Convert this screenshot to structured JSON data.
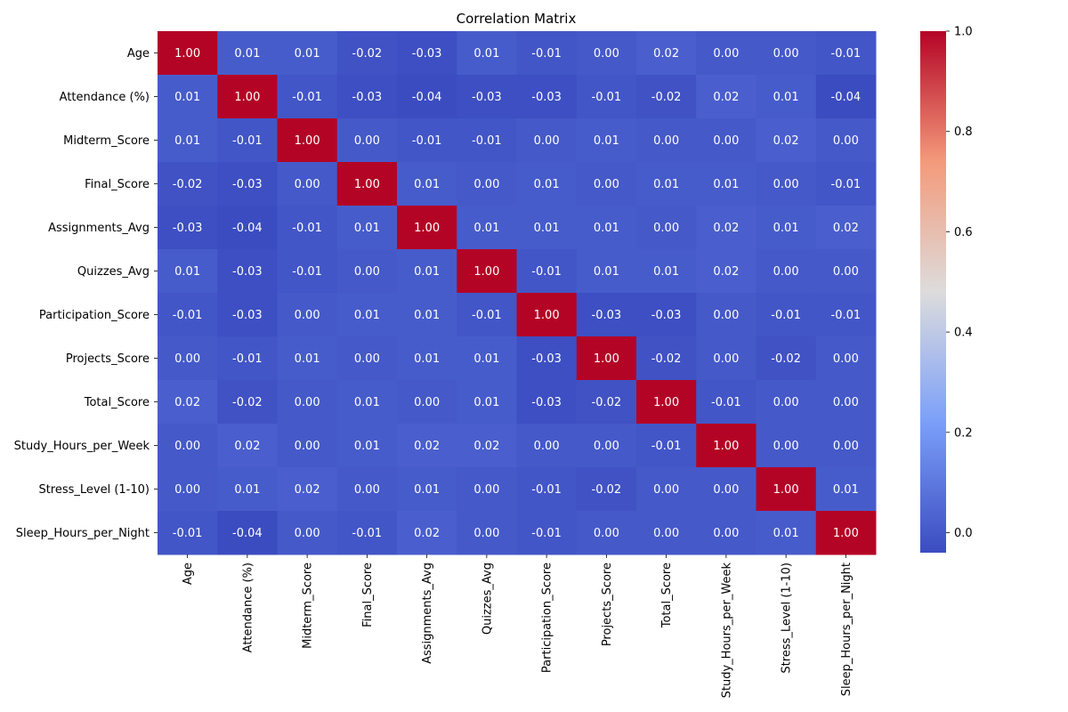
{
  "chart_data": {
    "type": "heatmap",
    "title": "Correlation Matrix",
    "colormap": "coolwarm",
    "value_format": "2 decimals",
    "labels": [
      "Age",
      "Attendance (%)",
      "Midterm_Score",
      "Final_Score",
      "Assignments_Avg",
      "Quizzes_Avg",
      "Participation_Score",
      "Projects_Score",
      "Total_Score",
      "Study_Hours_per_Week",
      "Stress_Level (1-10)",
      "Sleep_Hours_per_Night"
    ],
    "values": [
      [
        1.0,
        0.01,
        0.01,
        -0.02,
        -0.03,
        0.01,
        -0.01,
        0.0,
        0.02,
        0.0,
        -0.0,
        -0.01
      ],
      [
        0.01,
        1.0,
        -0.01,
        -0.03,
        -0.04,
        -0.03,
        -0.03,
        -0.01,
        -0.02,
        0.02,
        0.01,
        -0.04
      ],
      [
        0.01,
        -0.01,
        1.0,
        0.0,
        -0.01,
        -0.01,
        -0.0,
        0.01,
        -0.0,
        0.0,
        0.02,
        -0.0
      ],
      [
        -0.02,
        -0.03,
        0.0,
        1.0,
        0.01,
        0.0,
        0.01,
        -0.0,
        0.01,
        0.01,
        -0.0,
        -0.01
      ],
      [
        -0.03,
        -0.04,
        -0.01,
        0.01,
        1.0,
        0.01,
        0.01,
        0.01,
        0.0,
        0.02,
        0.01,
        0.02
      ],
      [
        0.01,
        -0.03,
        -0.01,
        0.0,
        0.01,
        1.0,
        -0.01,
        0.01,
        0.01,
        0.02,
        0.0,
        0.0
      ],
      [
        -0.01,
        -0.03,
        -0.0,
        0.01,
        0.01,
        -0.01,
        1.0,
        -0.03,
        -0.03,
        -0.0,
        -0.01,
        -0.01
      ],
      [
        0.0,
        -0.01,
        0.01,
        -0.0,
        0.01,
        0.01,
        -0.03,
        1.0,
        -0.02,
        0.0,
        -0.02,
        -0.0
      ],
      [
        0.02,
        -0.02,
        -0.0,
        0.01,
        0.0,
        0.01,
        -0.03,
        -0.02,
        1.0,
        -0.01,
        0.0,
        0.0
      ],
      [
        0.0,
        0.02,
        0.0,
        0.01,
        0.02,
        0.02,
        -0.0,
        0.0,
        -0.01,
        1.0,
        0.0,
        -0.0
      ],
      [
        -0.0,
        0.01,
        0.02,
        -0.0,
        0.01,
        0.0,
        -0.01,
        -0.02,
        0.0,
        0.0,
        1.0,
        0.01
      ],
      [
        -0.01,
        -0.04,
        -0.0,
        -0.01,
        0.02,
        0.0,
        -0.01,
        -0.0,
        0.0,
        -0.0,
        0.01,
        1.0
      ]
    ],
    "colorbar": {
      "vmin": -0.04,
      "vmax": 1.0,
      "ticks": [
        0.0,
        0.2,
        0.4,
        0.6,
        0.8,
        1.0
      ],
      "tick_labels": [
        "0.0",
        "0.2",
        "0.4",
        "0.6",
        "0.8",
        "1.0"
      ]
    }
  }
}
